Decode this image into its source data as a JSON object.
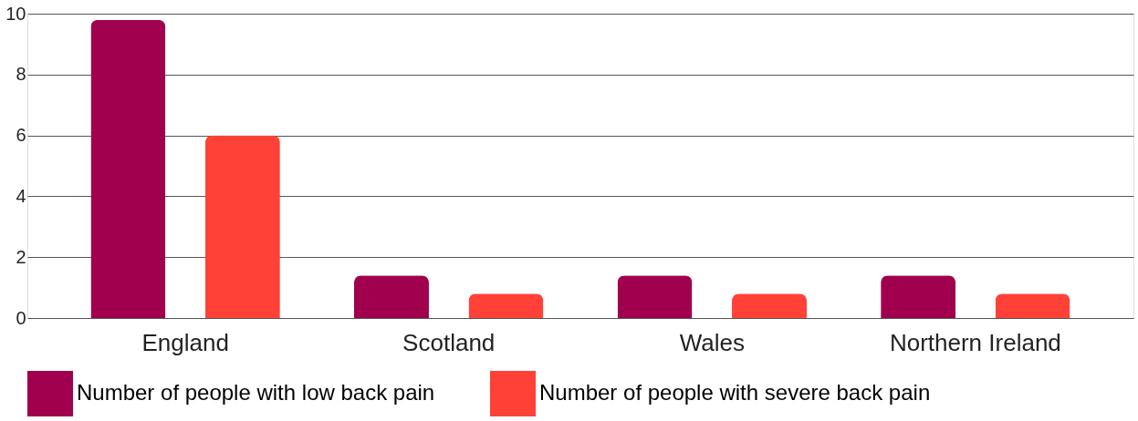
{
  "chart_data": {
    "type": "bar",
    "categories": [
      "England",
      "Scotland",
      "Wales",
      "Northern Ireland"
    ],
    "series": [
      {
        "name": "Number of people with low back pain",
        "color": "#a0004d",
        "values": [
          9.8,
          1.4,
          1.4,
          1.4
        ]
      },
      {
        "name": "Number of people with severe back pain",
        "color": "#ff4138",
        "values": [
          6.0,
          0.8,
          0.8,
          0.8
        ]
      }
    ],
    "ylim": [
      0,
      10
    ],
    "yticks": [
      0,
      2,
      4,
      6,
      8,
      10
    ],
    "grid": "y",
    "legend": "bottom"
  }
}
